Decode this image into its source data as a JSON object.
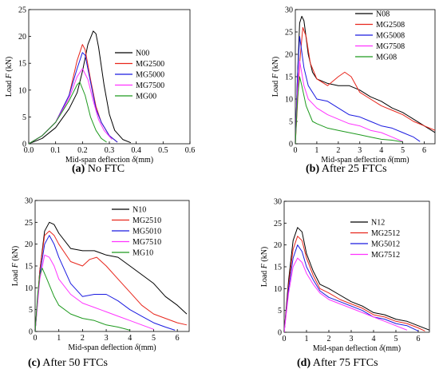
{
  "chart_data": [
    {
      "type": "line",
      "caption_letter": "(a)",
      "caption_text": " No FTC",
      "xlabel": "Mid-span deflection",
      "xlabel_symbol": "δ",
      "xlabel_unit": "(mm)",
      "ylabel": "Load",
      "ylabel_symbol": "F",
      "ylabel_unit": "(kN)",
      "xlim": [
        0,
        0.6
      ],
      "ylim": [
        0,
        25
      ],
      "xticks": [
        0.0,
        0.1,
        0.2,
        0.3,
        0.4,
        0.5,
        0.6
      ],
      "xtick_labels": [
        "0.0",
        "0.1",
        "0.2",
        "0.3",
        "0.4",
        "0.5",
        "0.6"
      ],
      "yticks": [
        0,
        5,
        10,
        15,
        20,
        25
      ],
      "ytick_labels": [
        "0",
        "5",
        "10",
        "15",
        "20",
        "25"
      ],
      "legend_position": "top-right",
      "series": [
        {
          "name": "N00",
          "color": "#000000",
          "x": [
            0,
            0.05,
            0.1,
            0.15,
            0.18,
            0.2,
            0.22,
            0.24,
            0.25,
            0.26,
            0.28,
            0.3,
            0.32,
            0.35,
            0.38
          ],
          "y": [
            0,
            1,
            3,
            6.5,
            9.5,
            13.5,
            18.5,
            21,
            20.5,
            18,
            11,
            5.5,
            2.5,
            0.8,
            0.2
          ]
        },
        {
          "name": "MG2500",
          "color": "#e8261c",
          "x": [
            0,
            0.05,
            0.1,
            0.15,
            0.18,
            0.2,
            0.21,
            0.23,
            0.25,
            0.27,
            0.3,
            0.33
          ],
          "y": [
            0,
            1.5,
            4,
            9,
            15.5,
            18.5,
            17.5,
            12,
            7,
            4,
            1.5,
            0.3
          ]
        },
        {
          "name": "MG5000",
          "color": "#1a1ae0",
          "x": [
            0,
            0.05,
            0.1,
            0.15,
            0.18,
            0.2,
            0.21,
            0.23,
            0.25,
            0.27,
            0.3,
            0.33
          ],
          "y": [
            0,
            1.5,
            4,
            9,
            14,
            17,
            16.5,
            11.5,
            6.5,
            4,
            1.5,
            0.3
          ]
        },
        {
          "name": "MG7500",
          "color": "#ff33ff",
          "x": [
            0,
            0.05,
            0.1,
            0.15,
            0.18,
            0.2,
            0.22,
            0.24,
            0.26,
            0.28,
            0.31
          ],
          "y": [
            0,
            1.5,
            4,
            8.5,
            12.5,
            14,
            12,
            8,
            4.5,
            2.5,
            0.8
          ]
        },
        {
          "name": "MG00",
          "color": "#1e9a1e",
          "x": [
            0,
            0.05,
            0.1,
            0.15,
            0.18,
            0.19,
            0.21,
            0.23,
            0.25,
            0.27,
            0.29
          ],
          "y": [
            0,
            1.5,
            4,
            8,
            11,
            11.5,
            9,
            5,
            2.5,
            1,
            0.3
          ]
        }
      ]
    },
    {
      "type": "line",
      "caption_letter": "(b)",
      "caption_text": " After 25 FTCs",
      "xlabel": "Mid-span deflection",
      "xlabel_symbol": "δ",
      "xlabel_unit": "(mm)",
      "ylabel": "Load",
      "ylabel_symbol": "F",
      "ylabel_unit": "(kN)",
      "xlim": [
        0,
        6.5
      ],
      "ylim": [
        0,
        30
      ],
      "xticks": [
        0,
        1,
        2,
        3,
        4,
        5,
        6
      ],
      "xtick_labels": [
        "0",
        "1",
        "2",
        "3",
        "4",
        "5",
        "6"
      ],
      "yticks": [
        0,
        5,
        10,
        15,
        20,
        25,
        30
      ],
      "ytick_labels": [
        "0",
        "5",
        "10",
        "15",
        "20",
        "25",
        "30"
      ],
      "legend_position": "top-right",
      "series": [
        {
          "name": "N08",
          "color": "#000000",
          "x": [
            0,
            0.1,
            0.2,
            0.3,
            0.4,
            0.6,
            0.8,
            1,
            1.5,
            2,
            2.5,
            3,
            3.5,
            4,
            4.5,
            5,
            5.5,
            6,
            6.5
          ],
          "y": [
            0,
            15,
            27,
            28.5,
            27.5,
            20,
            16,
            14.5,
            13.5,
            13,
            13,
            12,
            10.5,
            9.5,
            8,
            7,
            5.5,
            4,
            2.5
          ]
        },
        {
          "name": "MG2508",
          "color": "#e8261c",
          "x": [
            0,
            0.2,
            0.35,
            0.5,
            0.7,
            1,
            1.5,
            2,
            2.3,
            2.6,
            3,
            3.5,
            4,
            4.5,
            5,
            5.5,
            6,
            6.5
          ],
          "y": [
            0,
            18,
            26,
            24,
            18,
            14.5,
            13,
            15,
            16,
            15,
            11.5,
            10,
            8.5,
            7.5,
            6.5,
            5,
            4,
            3
          ]
        },
        {
          "name": "MG5008",
          "color": "#1a1ae0",
          "x": [
            0,
            0.1,
            0.2,
            0.4,
            0.6,
            1,
            1.5,
            2,
            2.5,
            3,
            3.5,
            4,
            4.5,
            5,
            5.5,
            5.8
          ],
          "y": [
            0,
            15,
            24,
            17,
            13,
            10,
            9.5,
            8,
            6.5,
            6,
            5,
            4,
            3.5,
            2.5,
            1.5,
            0.5
          ]
        },
        {
          "name": "MG7508",
          "color": "#ff33ff",
          "x": [
            0,
            0.1,
            0.2,
            0.4,
            0.6,
            1,
            1.5,
            2,
            2.5,
            3,
            3.5,
            4,
            4.5,
            5
          ],
          "y": [
            0,
            12,
            18.5,
            13,
            10,
            8,
            6.5,
            5.5,
            4.5,
            4,
            3,
            2.5,
            1.5,
            0.5
          ]
        },
        {
          "name": "MG08",
          "color": "#1e9a1e",
          "x": [
            0,
            0.1,
            0.2,
            0.3,
            0.5,
            0.8,
            1,
            1.5,
            2,
            2.5,
            3,
            3.5,
            4,
            4.5,
            5
          ],
          "y": [
            0,
            10,
            15,
            13,
            8.5,
            5,
            4.5,
            3.5,
            3,
            2.5,
            2,
            1.5,
            1,
            0.8,
            0.4
          ]
        }
      ]
    },
    {
      "type": "line",
      "caption_letter": "(c)",
      "caption_text": " After 50 FTCs",
      "xlabel": "Mid-span deflection",
      "xlabel_symbol": "δ",
      "xlabel_unit": "(mm)",
      "ylabel": "Load",
      "ylabel_symbol": "F",
      "ylabel_unit": "(kN)",
      "xlim": [
        0,
        6.5
      ],
      "ylim": [
        0,
        30
      ],
      "xticks": [
        0,
        1,
        2,
        3,
        4,
        5,
        6
      ],
      "xtick_labels": [
        "0",
        "1",
        "2",
        "3",
        "4",
        "5",
        "6"
      ],
      "yticks": [
        0,
        5,
        10,
        15,
        20,
        25,
        30
      ],
      "ytick_labels": [
        "0",
        "5",
        "10",
        "15",
        "20",
        "25",
        "30"
      ],
      "legend_position": "top-right",
      "series": [
        {
          "name": "N10",
          "color": "#000000",
          "x": [
            0,
            0.2,
            0.4,
            0.6,
            0.8,
            1,
            1.5,
            2,
            2.5,
            3,
            3.5,
            4,
            4.5,
            5,
            5.5,
            6,
            6.4
          ],
          "y": [
            0,
            14,
            23,
            25,
            24.5,
            22.5,
            19,
            18.5,
            18.5,
            17.5,
            17,
            15,
            13,
            11,
            8,
            6,
            4
          ]
        },
        {
          "name": "MG2510",
          "color": "#e8261c",
          "x": [
            0,
            0.2,
            0.4,
            0.6,
            0.8,
            1,
            1.5,
            2,
            2.3,
            2.6,
            3,
            3.5,
            4,
            4.5,
            5,
            5.5,
            6,
            6.4
          ],
          "y": [
            0,
            14,
            22,
            23,
            22,
            20,
            16,
            15,
            16.5,
            17,
            15,
            12,
            9,
            6,
            4,
            3,
            2,
            1.5
          ]
        },
        {
          "name": "MG5010",
          "color": "#1a1ae0",
          "x": [
            0,
            0.2,
            0.4,
            0.6,
            0.8,
            1,
            1.5,
            2,
            2.5,
            3,
            3.5,
            4,
            4.5,
            5,
            5.5,
            5.9
          ],
          "y": [
            0,
            13,
            20,
            22,
            20,
            17,
            11,
            8,
            8.5,
            8.5,
            7,
            5,
            3.5,
            2,
            1,
            0.3
          ]
        },
        {
          "name": "MG7510",
          "color": "#ff33ff",
          "x": [
            0,
            0.2,
            0.4,
            0.6,
            0.8,
            1,
            1.5,
            2,
            2.5,
            3,
            3.5,
            4,
            4.5,
            5
          ],
          "y": [
            0,
            12,
            17.5,
            17,
            15,
            12,
            8.5,
            6.5,
            5.5,
            4.5,
            3.5,
            2.5,
            1.5,
            0.5
          ]
        },
        {
          "name": "MG10",
          "color": "#1e9a1e",
          "x": [
            0,
            0.1,
            0.2,
            0.3,
            0.5,
            0.8,
            1,
            1.5,
            2,
            2.5,
            3,
            3.5,
            4
          ],
          "y": [
            0,
            8,
            13,
            14.5,
            12,
            8,
            6,
            4,
            3,
            2.5,
            1.5,
            1,
            0.3
          ]
        }
      ]
    },
    {
      "type": "line",
      "caption_letter": "(d)",
      "caption_text": " After 75 FTCs",
      "xlabel": "Mid-span deflection",
      "xlabel_symbol": "δ",
      "xlabel_unit": "(mm)",
      "ylabel": "Load",
      "ylabel_symbol": "F",
      "ylabel_unit": "(kN)",
      "xlim": [
        0,
        6.5
      ],
      "ylim": [
        0,
        30
      ],
      "xticks": [
        0,
        1,
        2,
        3,
        4,
        5,
        6
      ],
      "xtick_labels": [
        "0",
        "1",
        "2",
        "3",
        "4",
        "5",
        "6"
      ],
      "yticks": [
        0,
        5,
        10,
        15,
        20,
        25,
        30
      ],
      "ytick_labels": [
        "0",
        "5",
        "10",
        "15",
        "20",
        "25",
        "30"
      ],
      "legend_position": "top-right",
      "series": [
        {
          "name": "N12",
          "color": "#000000",
          "x": [
            0,
            0.2,
            0.4,
            0.6,
            0.8,
            1,
            1.3,
            1.6,
            2,
            2.5,
            3,
            3.5,
            4,
            4.5,
            5,
            5.5,
            6,
            6.5
          ],
          "y": [
            0,
            12,
            21,
            24,
            23,
            18,
            14,
            11,
            10,
            8.5,
            7,
            6,
            4.5,
            4,
            3,
            2.5,
            1.5,
            0.5
          ]
        },
        {
          "name": "MG2512",
          "color": "#e8261c",
          "x": [
            0,
            0.2,
            0.4,
            0.6,
            0.8,
            1,
            1.3,
            1.6,
            2,
            2.5,
            3,
            3.5,
            4,
            4.5,
            5,
            5.5,
            6,
            6.3
          ],
          "y": [
            0,
            11,
            19,
            22,
            21,
            17,
            13,
            10,
            9,
            7.5,
            6.5,
            5.5,
            4,
            3.5,
            2.5,
            2,
            1,
            0.3
          ]
        },
        {
          "name": "MG5012",
          "color": "#1a1ae0",
          "x": [
            0,
            0.2,
            0.4,
            0.6,
            0.8,
            1,
            1.3,
            1.6,
            2,
            2.5,
            3,
            3.5,
            4,
            4.5,
            5,
            5.5,
            6
          ],
          "y": [
            0,
            10,
            17,
            20,
            18.5,
            15,
            12,
            9.5,
            8,
            7,
            6,
            5,
            3.5,
            3,
            2,
            1.5,
            0.3
          ]
        },
        {
          "name": "MG7512",
          "color": "#ff33ff",
          "x": [
            0,
            0.2,
            0.4,
            0.6,
            0.8,
            1,
            1.3,
            1.6,
            2,
            2.5,
            3,
            3.5,
            4,
            4.5,
            5,
            5.5
          ],
          "y": [
            0,
            9,
            15,
            17,
            16,
            13.5,
            11,
            9,
            7.5,
            6.5,
            5.5,
            4.5,
            3.5,
            2.5,
            1.5,
            0.5
          ]
        }
      ]
    }
  ]
}
